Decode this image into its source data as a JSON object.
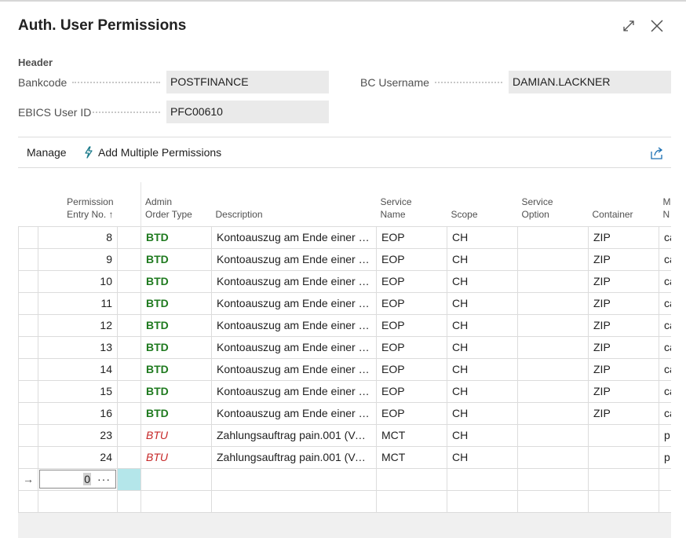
{
  "window": {
    "title": "Auth. User Permissions"
  },
  "header": {
    "section_label": "Header",
    "fields": [
      {
        "label": "Bankcode",
        "value": "POSTFINANCE"
      },
      {
        "label": "BC Username",
        "value": "DAMIAN.LACKNER"
      },
      {
        "label": "EBICS User ID",
        "value": "PFC00610"
      }
    ]
  },
  "actions": {
    "manage": "Manage",
    "add_multiple": "Add Multiple Permissions"
  },
  "grid": {
    "columns": [
      {
        "line1": "Permission",
        "line2": "Entry No. ↑"
      },
      {
        "line1": "Admin",
        "line2": "Order Type"
      },
      {
        "line1": "",
        "line2": "Description"
      },
      {
        "line1": "Service",
        "line2": "Name"
      },
      {
        "line1": "",
        "line2": "Scope"
      },
      {
        "line1": "Service",
        "line2": "Option"
      },
      {
        "line1": "",
        "line2": "Container"
      },
      {
        "line1": "M",
        "line2": "N"
      }
    ],
    "rows": [
      {
        "entry": "8",
        "type": "BTD",
        "desc": "Kontoauszug am Ende einer B...",
        "service": "EOP",
        "scope": "CH",
        "option": "",
        "container": "ZIP",
        "m": "ca"
      },
      {
        "entry": "9",
        "type": "BTD",
        "desc": "Kontoauszug am Ende einer B...",
        "service": "EOP",
        "scope": "CH",
        "option": "",
        "container": "ZIP",
        "m": "ca"
      },
      {
        "entry": "10",
        "type": "BTD",
        "desc": "Kontoauszug am Ende einer B...",
        "service": "EOP",
        "scope": "CH",
        "option": "",
        "container": "ZIP",
        "m": "ca"
      },
      {
        "entry": "11",
        "type": "BTD",
        "desc": "Kontoauszug am Ende einer B...",
        "service": "EOP",
        "scope": "CH",
        "option": "",
        "container": "ZIP",
        "m": "ca"
      },
      {
        "entry": "12",
        "type": "BTD",
        "desc": "Kontoauszug am Ende einer B...",
        "service": "EOP",
        "scope": "CH",
        "option": "",
        "container": "ZIP",
        "m": "ca"
      },
      {
        "entry": "13",
        "type": "BTD",
        "desc": "Kontoauszug am Ende einer B...",
        "service": "EOP",
        "scope": "CH",
        "option": "",
        "container": "ZIP",
        "m": "ca"
      },
      {
        "entry": "14",
        "type": "BTD",
        "desc": "Kontoauszug am Ende einer B...",
        "service": "EOP",
        "scope": "CH",
        "option": "",
        "container": "ZIP",
        "m": "ca"
      },
      {
        "entry": "15",
        "type": "BTD",
        "desc": "Kontoauszug am Ende einer B...",
        "service": "EOP",
        "scope": "CH",
        "option": "",
        "container": "ZIP",
        "m": "ca"
      },
      {
        "entry": "16",
        "type": "BTD",
        "desc": "Kontoauszug am Ende einer B...",
        "service": "EOP",
        "scope": "CH",
        "option": "",
        "container": "ZIP",
        "m": "ca"
      },
      {
        "entry": "23",
        "type": "BTU",
        "desc": "Zahlungsauftrag pain.001 (Ver...",
        "service": "MCT",
        "scope": "CH",
        "option": "",
        "container": "",
        "m": "p"
      },
      {
        "entry": "24",
        "type": "BTU",
        "desc": "Zahlungsauftrag pain.001 (Ver...",
        "service": "MCT",
        "scope": "CH",
        "option": "",
        "container": "",
        "m": "p"
      }
    ],
    "new_row": {
      "entry": "0",
      "ellipsis": "···",
      "arrow": "→"
    }
  },
  "colors": {
    "btd": "#1f7a1f",
    "btu": "#c62828",
    "selection": "#b4e6ea",
    "field_bg": "#eaeaea"
  },
  "icons": [
    "expand-icon",
    "close-icon",
    "lightning-icon",
    "share-icon",
    "sort-ascending-icon",
    "row-arrow-icon"
  ]
}
